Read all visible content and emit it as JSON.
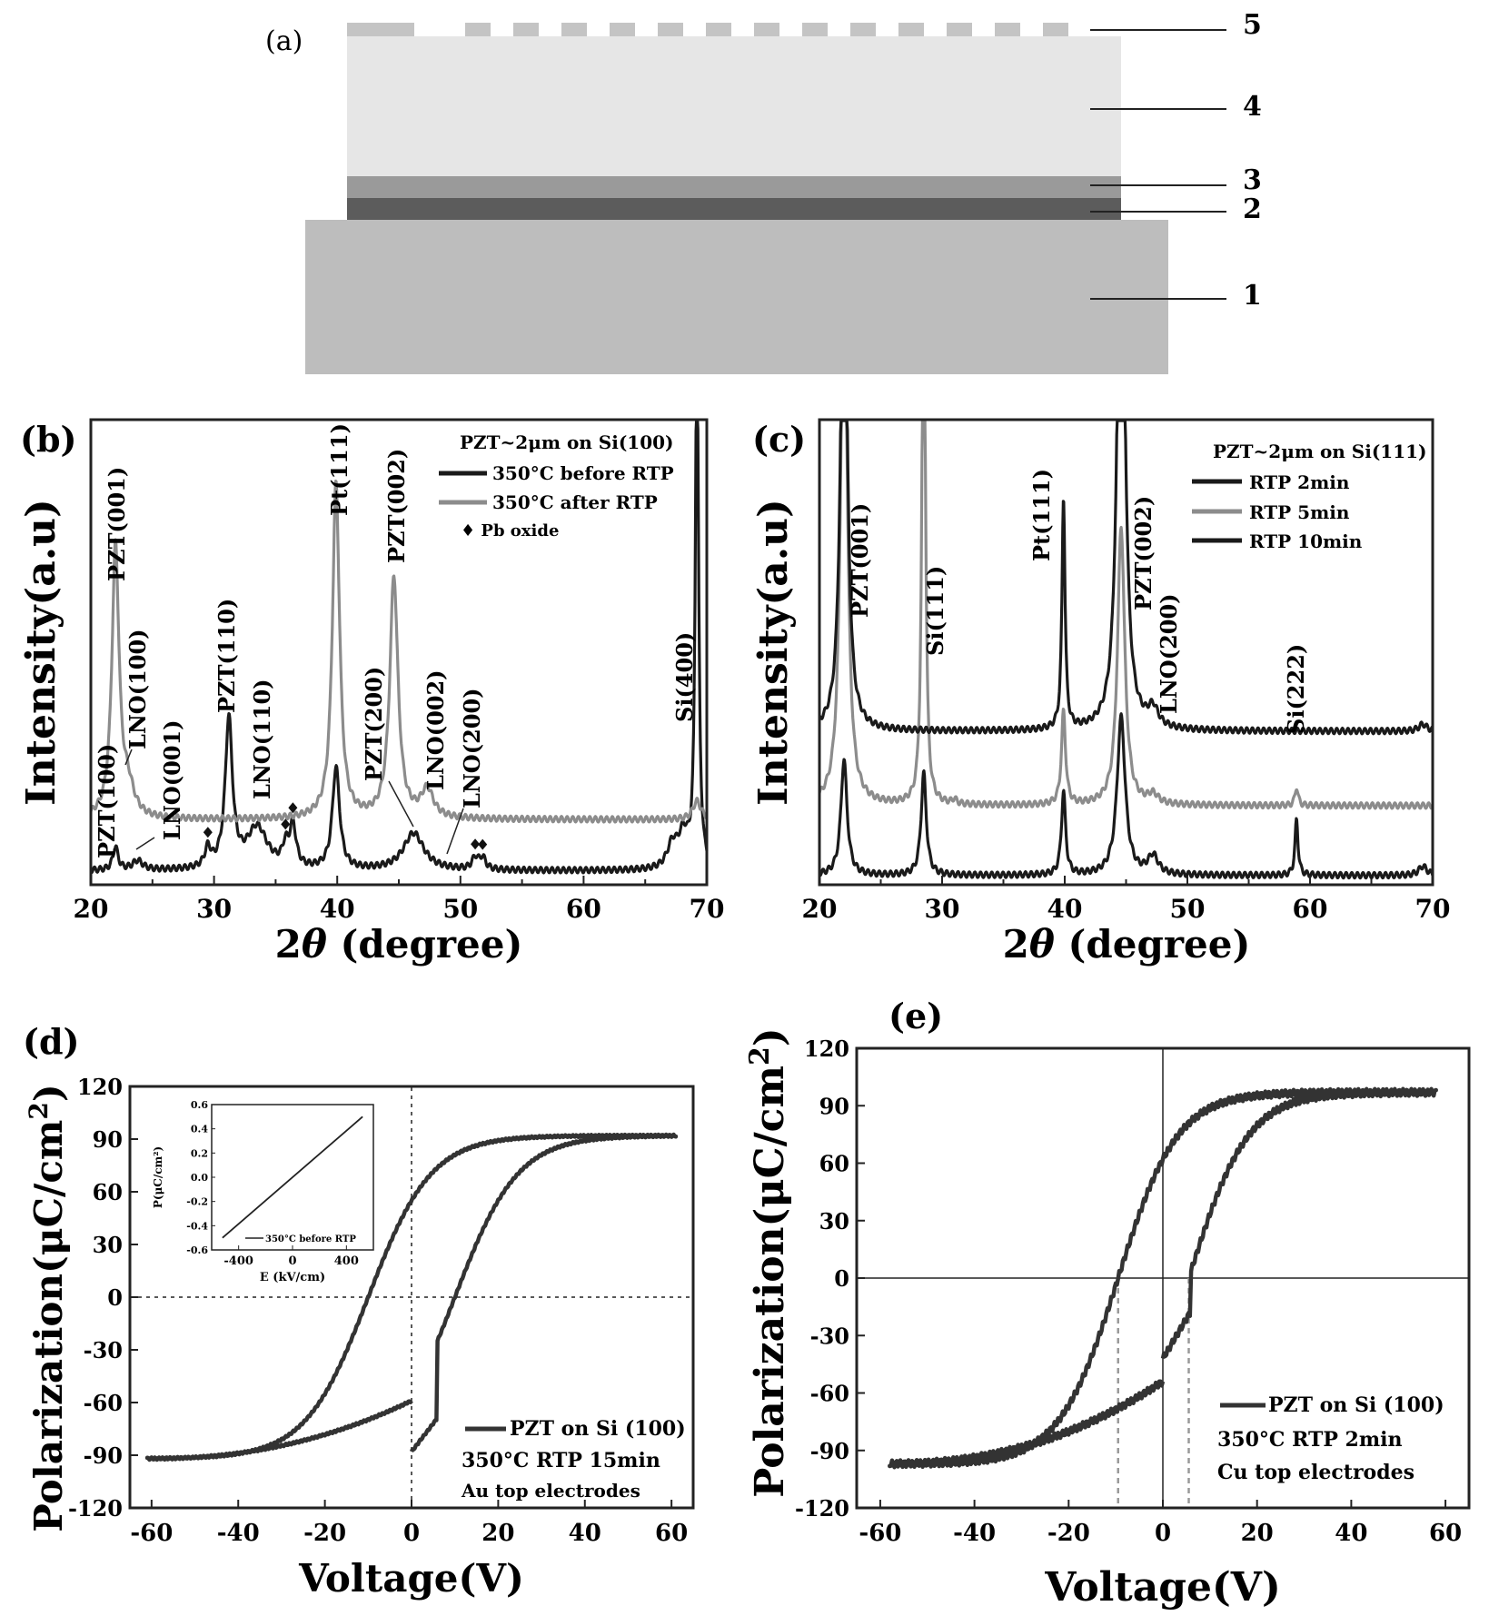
{
  "panels": {
    "a": {
      "label": "(a)",
      "layer_numbers": [
        "5",
        "4",
        "3",
        "2",
        "1"
      ],
      "colors": {
        "layer1": "#bdbdbd",
        "layer2": "#5c5c5c",
        "layer3": "#9a9a9a",
        "layer4": "#e6e6e6",
        "layer5": "#c4c4c4"
      }
    }
  },
  "chart_data": [
    {
      "panel": "b",
      "type": "line",
      "label": "(b)",
      "xlabel_prefix": "2",
      "xlabel_theta": "θ",
      "xlabel_suffix": " (degree)",
      "ylabel": "Intensity(a.u)",
      "xlim": [
        20,
        70
      ],
      "ylim": [
        0,
        1
      ],
      "xticks": [
        20,
        30,
        40,
        50,
        60,
        70
      ],
      "legend": {
        "title": "PZT~2μm on Si(100)",
        "entries": [
          "350°C before RTP",
          "350°C after RTP"
        ],
        "marker_entry": "♦ Pb oxide",
        "placement": "top-right"
      },
      "series": [
        {
          "name": "350°C before RTP",
          "color": "#1a1a1a",
          "baseline": 0.03,
          "peaks": [
            [
              22.0,
              0.05,
              0.25
            ],
            [
              23.8,
              0.02,
              0.5
            ],
            [
              29.5,
              0.04,
              0.3
            ],
            [
              31.2,
              0.32,
              0.35
            ],
            [
              33.5,
              0.09,
              1.0
            ],
            [
              35.8,
              0.04,
              0.3
            ],
            [
              36.4,
              0.09,
              0.3
            ],
            [
              39.9,
              0.22,
              0.35
            ],
            [
              46.2,
              0.08,
              1.0
            ],
            [
              51.2,
              0.025,
              0.3
            ],
            [
              51.8,
              0.025,
              0.3
            ],
            [
              67.2,
              0.05,
              0.5
            ],
            [
              68.1,
              0.07,
              0.5
            ],
            [
              69.2,
              1.2,
              0.15
            ]
          ]
        },
        {
          "name": "350°C after RTP",
          "color": "#8c8c8c",
          "baseline": 0.14,
          "peaks": [
            [
              22.0,
              0.58,
              0.35
            ],
            [
              23.0,
              0.06,
              0.6
            ],
            [
              39.9,
              0.72,
              0.35
            ],
            [
              44.6,
              0.52,
              0.4
            ],
            [
              47.3,
              0.06,
              0.6
            ],
            [
              69.2,
              0.04,
              0.4
            ]
          ]
        }
      ],
      "annotations": [
        "PZT(001)",
        "PZT(100)",
        "LNO(100)",
        "LNO(001)",
        "PZT(110)",
        "LNO(110)",
        "Pt(111)",
        "PZT(002)",
        "PZT(200)",
        "LNO(002)",
        "LNO(200)",
        "Si(400)"
      ],
      "oxide_markers": [
        29.5,
        35.8,
        36.4,
        51.2,
        51.8
      ]
    },
    {
      "panel": "c",
      "type": "line",
      "label": "(c)",
      "xlabel_prefix": "2",
      "xlabel_theta": "θ",
      "xlabel_suffix": " (degree)",
      "ylabel": "Intensity(a.u)",
      "xlim": [
        20,
        70
      ],
      "ylim": [
        0,
        1
      ],
      "xticks": [
        20,
        30,
        40,
        50,
        60,
        70
      ],
      "legend": {
        "title": "PZT~2μm on Si(111)",
        "entries": [
          "RTP 2min",
          "RTP 5min",
          "RTP 10min"
        ],
        "placement": "top-right"
      },
      "series": [
        {
          "name": "RTP 2min",
          "color": "#1a1a1a",
          "baseline": 0.02,
          "peaks": [
            [
              22.0,
              0.25,
              0.3
            ],
            [
              28.5,
              0.22,
              0.25
            ],
            [
              39.9,
              0.18,
              0.2
            ],
            [
              44.6,
              0.34,
              0.4
            ],
            [
              47.2,
              0.04,
              0.5
            ],
            [
              58.9,
              0.12,
              0.15
            ],
            [
              69.2,
              0.02,
              0.4
            ]
          ]
        },
        {
          "name": "RTP 5min",
          "color": "#8c8c8c",
          "baseline": 0.17,
          "peaks": [
            [
              22.0,
              1.3,
              0.3
            ],
            [
              28.5,
              1.4,
              0.15
            ],
            [
              31.0,
              0.01,
              0.2
            ],
            [
              39.9,
              0.2,
              0.2
            ],
            [
              44.6,
              0.6,
              0.35
            ],
            [
              47.2,
              0.02,
              0.5
            ],
            [
              58.9,
              0.04,
              0.15
            ]
          ]
        },
        {
          "name": "RTP 10min",
          "color": "#1a1a1a",
          "baseline": 0.33,
          "peaks": [
            [
              22.0,
              1.2,
              0.3
            ],
            [
              39.9,
              0.5,
              0.15
            ],
            [
              44.6,
              1.3,
              0.35
            ],
            [
              47.2,
              0.04,
              0.5
            ],
            [
              69.2,
              0.015,
              0.4
            ]
          ]
        }
      ],
      "annotations": [
        "PZT(001)",
        "Si(111)",
        "Pt(111)",
        "PZT(002)",
        "LNO(200)",
        "Si(222)"
      ]
    },
    {
      "panel": "d",
      "type": "line",
      "label": "(d)",
      "xlabel": "Voltage(V)",
      "ylabel": "Polarization(μC/cm",
      "ylabel_sup": "2",
      "ylabel_end": ")",
      "xlim": [
        -65,
        65
      ],
      "ylim": [
        -120,
        120
      ],
      "xticks": [
        -60,
        -40,
        -20,
        0,
        20,
        40,
        60
      ],
      "yticks": [
        -120,
        -90,
        -60,
        -30,
        0,
        30,
        60,
        90,
        120
      ],
      "legend": {
        "entry": "PZT on Si (100)",
        "notes": [
          "350°C RTP 15min",
          "Au top electrodes"
        ],
        "placement": "bottom-right"
      },
      "loop": {
        "vmax": 61,
        "pmax": 92,
        "ec": 10,
        "pr": 55,
        "start": -44,
        "end": -59
      },
      "inset": {
        "type": "line",
        "ylabel": "P(μC/cm²)",
        "xlabel": "E (kV/cm)",
        "xlim": [
          -600,
          600
        ],
        "ylim": [
          -0.6,
          0.6
        ],
        "xticks": [
          -400,
          0,
          400
        ],
        "yticks": [
          -0.6,
          -0.4,
          -0.2,
          0.0,
          0.2,
          0.4,
          0.6
        ],
        "ytick_labels": [
          "-0.6",
          "-0.4",
          "-0.2",
          "0.0",
          "0.2",
          "0.4",
          "0.6"
        ],
        "legend": "350°C before RTP",
        "x": [
          -520,
          520
        ],
        "y": [
          -0.5,
          0.5
        ]
      }
    },
    {
      "panel": "e",
      "type": "line",
      "label": "(e)",
      "xlabel": "Voltage(V)",
      "ylabel": "Polarization(μC/cm",
      "ylabel_sup": "2",
      "ylabel_end": ")",
      "xlim": [
        -65,
        65
      ],
      "ylim": [
        -120,
        120
      ],
      "xticks": [
        -60,
        -40,
        -20,
        0,
        20,
        40,
        60
      ],
      "yticks": [
        -120,
        -90,
        -60,
        -30,
        0,
        30,
        60,
        90,
        120
      ],
      "legend": {
        "entry": "PZT on Si (100)",
        "notes": [
          "350°C RTP 2min",
          "Cu top electrodes"
        ],
        "placement": "bottom-right"
      },
      "loop": {
        "vmax": 58,
        "pmax": 97,
        "ecn": -9.5,
        "ecp": 5.5,
        "pr": 52,
        "start": -21,
        "end": -54
      },
      "coercive_lines": [
        -9.5,
        5.5
      ]
    }
  ]
}
